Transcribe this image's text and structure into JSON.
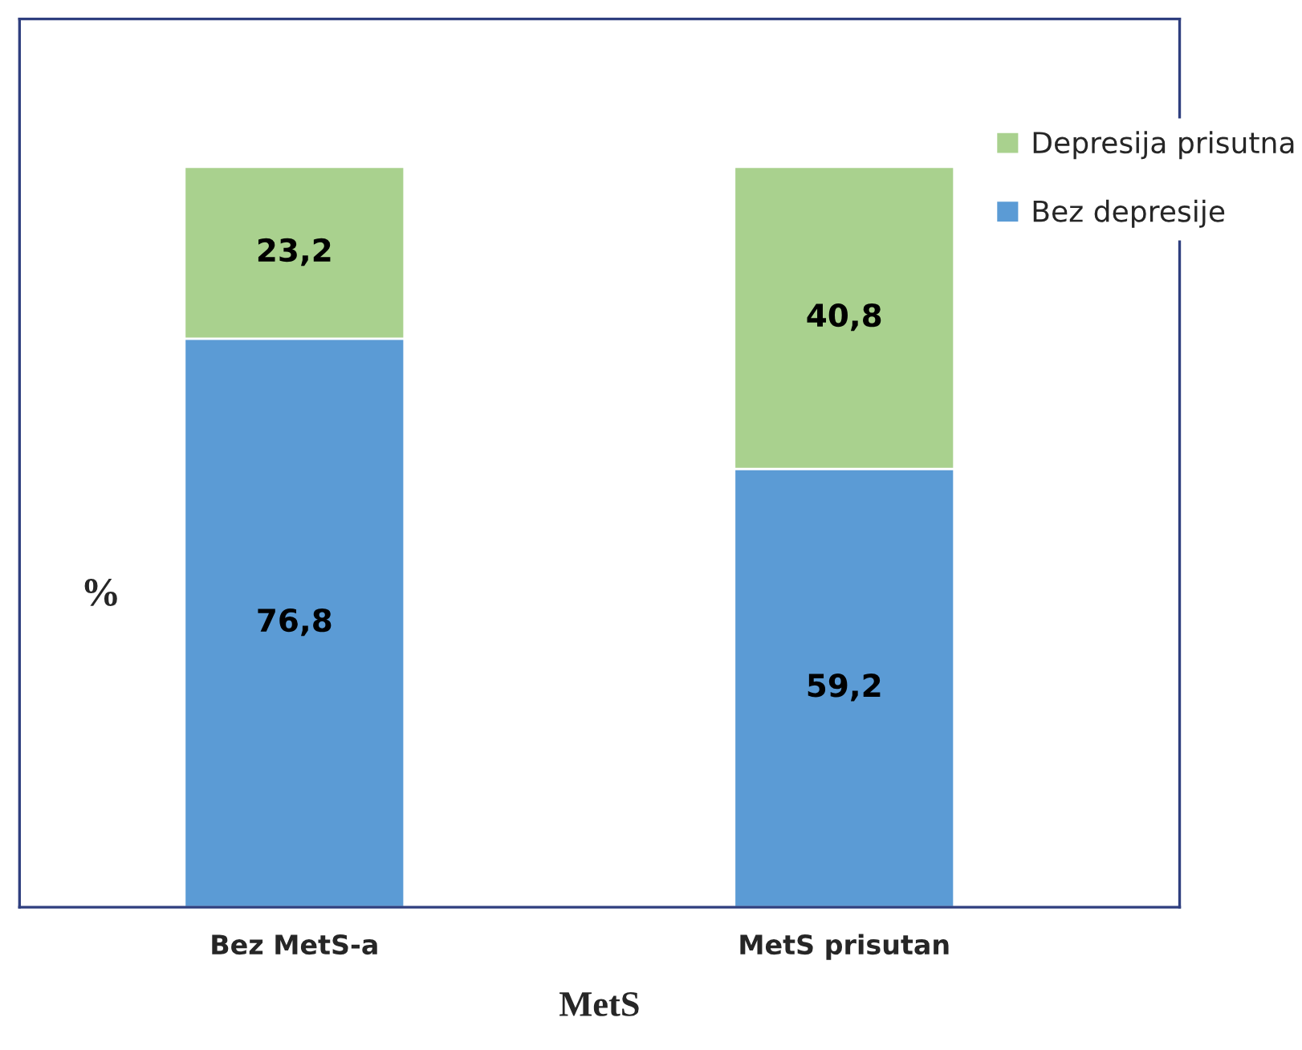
{
  "chart_data": {
    "type": "bar",
    "stacked": true,
    "xlabel": "MetS",
    "ylabel": "%",
    "categories": [
      "Bez MetS-a",
      "MetS prisutan"
    ],
    "series": [
      {
        "name": "Bez depresije",
        "color": "#5b9bd5",
        "values": [
          76.8,
          59.2
        ],
        "value_labels": [
          "76,8",
          "59,2"
        ]
      },
      {
        "name": "Depresija prisutna",
        "color": "#a9d18e",
        "values": [
          23.2,
          40.8
        ],
        "value_labels": [
          "23,2",
          "40,8"
        ]
      }
    ],
    "ylim": [
      0,
      120
    ],
    "tick_labels": "x",
    "legend": "right",
    "grid": false
  }
}
